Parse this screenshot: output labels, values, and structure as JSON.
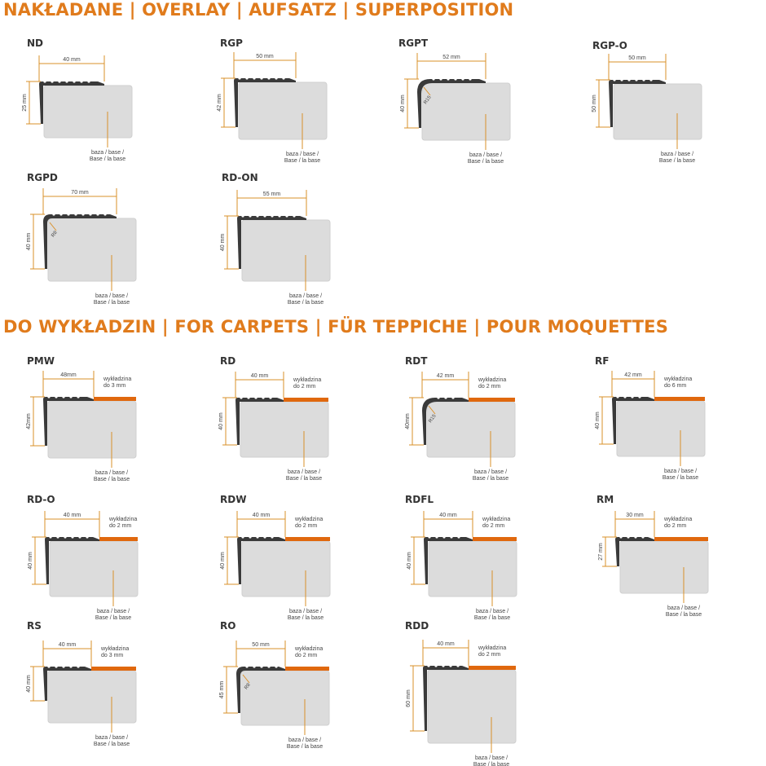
{
  "colors": {
    "accent": "#e07b1c",
    "dimension": "#d9902a",
    "profile": "#3a3a3a",
    "base": "#dcdcdc",
    "carpet": "#e0680e"
  },
  "common": {
    "base_label_line1": "baza / base /",
    "base_label_line2": "Base / la base",
    "carpet_label_line1": "wykładzina"
  },
  "sections": [
    {
      "title": "NAKŁADANE | OVERLAY | AUFSATZ | SUPERPOSITION",
      "profiles": [
        {
          "name": "ND",
          "width": "40 mm",
          "height": "25 mm"
        },
        {
          "name": "RGP",
          "width": "50 mm",
          "height": "42 mm"
        },
        {
          "name": "RGPT",
          "width": "52 mm",
          "height": "40 mm",
          "radius": "R15"
        },
        {
          "name": "RGP-O",
          "width": "50 mm",
          "height": "50 mm"
        },
        {
          "name": "RGPD",
          "width": "70 mm",
          "height": "40 mm",
          "radius": "R8"
        },
        {
          "name": "RD-ON",
          "width": "55 mm",
          "height": "40 mm"
        }
      ]
    },
    {
      "title": "DO WYKŁADZIN | FOR CARPETS | FÜR TEPPICHE | POUR MOQUETTES",
      "profiles": [
        {
          "name": "PMW",
          "width": "48mm",
          "height": "42mm",
          "carpet": "do 3 mm"
        },
        {
          "name": "RD",
          "width": "40 mm",
          "height": "40 mm",
          "carpet": "do 2 mm"
        },
        {
          "name": "RDT",
          "width": "42 mm",
          "height": "40mm",
          "carpet": "do 2 mm",
          "radius": "R15"
        },
        {
          "name": "RF",
          "width": "42 mm",
          "height": "40 mm",
          "carpet": "do 6 mm"
        },
        {
          "name": "RD-O",
          "width": "40 mm",
          "height": "40 mm",
          "carpet": "do 2 mm"
        },
        {
          "name": "RDW",
          "width": "40 mm",
          "height": "40 mm",
          "carpet": "do 2 mm"
        },
        {
          "name": "RDFL",
          "width": "40 mm",
          "height": "40 mm",
          "carpet": "do 2 mm"
        },
        {
          "name": "RM",
          "width": "30 mm",
          "height": "27 mm",
          "carpet": "do 2 mm"
        },
        {
          "name": "RS",
          "width": "40 mm",
          "height": "40 mm",
          "carpet": "do 3 mm"
        },
        {
          "name": "RO",
          "width": "50 mm",
          "height": "45 mm",
          "carpet": "do 2 mm",
          "radius": "R8"
        },
        {
          "name": "RDD",
          "width": "40 mm",
          "height": "60 mm",
          "carpet": "do 2 mm"
        }
      ]
    }
  ]
}
